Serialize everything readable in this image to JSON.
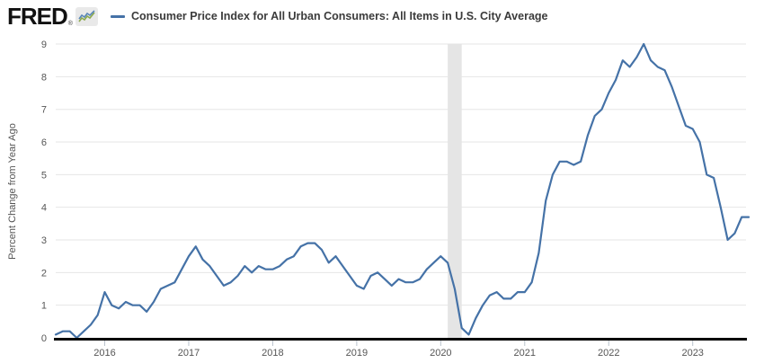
{
  "header": {
    "logo_text": "FRED",
    "logo_registered": "®",
    "legend": {
      "series_label": "Consumer Price Index for All Urban Consumers: All Items in U.S. City Average"
    }
  },
  "colors": {
    "series_line": "#4572a7",
    "logo_icon_blue": "#5a87b8",
    "logo_icon_green": "#8caa4e",
    "gridline": "#e6e6e6",
    "recession_band": "#e5e5e5",
    "axis_line": "#000000",
    "tick_label": "#555555"
  },
  "chart_data": {
    "type": "line",
    "title": "Consumer Price Index for All Urban Consumers: All Items in U.S. City Average",
    "xlabel": "",
    "ylabel": "Percent Change from Year Ago",
    "ylim": [
      0,
      9
    ],
    "yticks": [
      0,
      1,
      2,
      3,
      4,
      5,
      6,
      7,
      8,
      9
    ],
    "x_tick_labels": [
      "2016",
      "2017",
      "2018",
      "2019",
      "2020",
      "2021",
      "2022",
      "2023"
    ],
    "x_start": "2015-06",
    "x_end": "2023-09",
    "frequency": "monthly",
    "grid": "horizontal",
    "legend_position": "top",
    "recession_bands": [
      {
        "from": "2020-02",
        "to": "2020-04"
      }
    ],
    "series": [
      {
        "name": "Consumer Price Index for All Urban Consumers: All Items in U.S. City Average",
        "units": "Percent Change from Year Ago",
        "values": [
          0.1,
          0.2,
          0.2,
          0.0,
          0.2,
          0.4,
          0.7,
          1.4,
          1.0,
          0.9,
          1.1,
          1.0,
          1.0,
          0.8,
          1.1,
          1.5,
          1.6,
          1.7,
          2.1,
          2.5,
          2.8,
          2.4,
          2.2,
          1.9,
          1.6,
          1.7,
          1.9,
          2.2,
          2.0,
          2.2,
          2.1,
          2.1,
          2.2,
          2.4,
          2.5,
          2.8,
          2.9,
          2.9,
          2.7,
          2.3,
          2.5,
          2.2,
          1.9,
          1.6,
          1.5,
          1.9,
          2.0,
          1.8,
          1.6,
          1.8,
          1.7,
          1.7,
          1.8,
          2.1,
          2.3,
          2.5,
          2.3,
          1.5,
          0.3,
          0.1,
          0.6,
          1.0,
          1.3,
          1.4,
          1.2,
          1.2,
          1.4,
          1.4,
          1.7,
          2.6,
          4.2,
          5.0,
          5.4,
          5.4,
          5.3,
          5.4,
          6.2,
          6.8,
          7.0,
          7.5,
          7.9,
          8.5,
          8.3,
          8.6,
          9.0,
          8.5,
          8.3,
          8.2,
          7.7,
          7.1,
          6.5,
          6.4,
          6.0,
          5.0,
          4.9,
          4.0,
          3.0,
          3.2,
          3.7,
          3.7
        ]
      }
    ]
  }
}
